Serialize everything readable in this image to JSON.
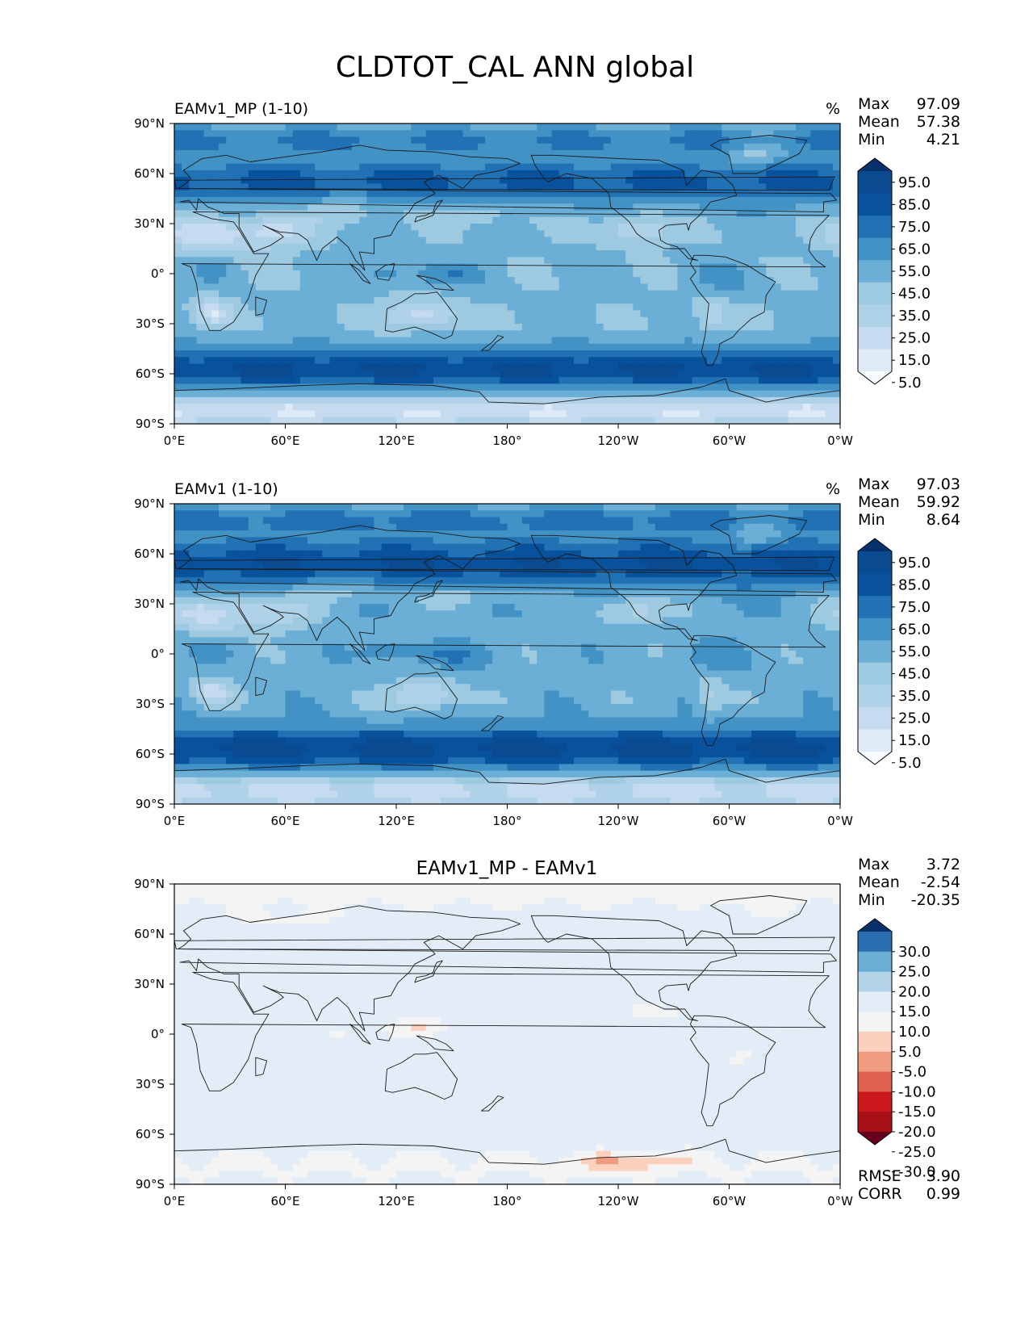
{
  "colors": {
    "blues": [
      "#f7fbff",
      "#deebf7",
      "#c6dbef",
      "#b0d2e8",
      "#9ecae1",
      "#6baed6",
      "#4292c6",
      "#2171b5",
      "#08519c",
      "#0a4a90",
      "#08306b"
    ],
    "diverging": [
      "#67001f",
      "#a50f15",
      "#cb181d",
      "#e0604e",
      "#f09a7f",
      "#fbd0bd",
      "#f4f4f4",
      "#e2edf7",
      "#b3d3e9",
      "#6aaed6",
      "#2a6db1",
      "#08306b"
    ],
    "land": "#1a1a1a"
  },
  "chart_data": {
    "title": "CLDTOT_CAL ANN global",
    "x_ticks": [
      "0°E",
      "60°E",
      "120°E",
      "180°",
      "120°W",
      "60°W",
      "0°W"
    ],
    "y_ticks": [
      "90°N",
      "60°N",
      "30°N",
      "0°",
      "30°S",
      "60°S",
      "90°S"
    ],
    "panels": [
      {
        "id": "test",
        "type": "heatmap",
        "title_left": "EAMv1_MP (1-10)",
        "title_center": "",
        "units": "%",
        "stats": [
          {
            "label": "Max",
            "value": "97.09"
          },
          {
            "label": "Mean",
            "value": "57.38"
          },
          {
            "label": "Min",
            "value": "4.21"
          }
        ],
        "colorbar_levels": [
          0,
          10,
          20,
          30,
          40,
          50,
          60,
          70,
          80,
          90,
          100
        ],
        "colorbar_labels": [
          "95.0",
          "85.0",
          "75.0",
          "65.0",
          "55.0",
          "45.0",
          "35.0",
          "25.0",
          "15.0",
          "5.0"
        ],
        "extra_stats": []
      },
      {
        "id": "ref",
        "type": "heatmap",
        "title_left": "EAMv1 (1-10)",
        "title_center": "",
        "units": "%",
        "stats": [
          {
            "label": "Max",
            "value": "97.03"
          },
          {
            "label": "Mean",
            "value": "59.92"
          },
          {
            "label": "Min",
            "value": "8.64"
          }
        ],
        "colorbar_levels": [
          0,
          10,
          20,
          30,
          40,
          50,
          60,
          70,
          80,
          90,
          100
        ],
        "colorbar_labels": [
          "95.0",
          "85.0",
          "75.0",
          "65.0",
          "55.0",
          "45.0",
          "35.0",
          "25.0",
          "15.0",
          "5.0"
        ],
        "extra_stats": []
      },
      {
        "id": "diff",
        "type": "heatmap",
        "title_left": "",
        "title_center": "EAMv1_MP - EAMv1",
        "units": "",
        "stats": [
          {
            "label": "Max",
            "value": "3.72"
          },
          {
            "label": "Mean",
            "value": "-2.54"
          },
          {
            "label": "Min",
            "value": "-20.35"
          }
        ],
        "colorbar_levels": [
          -35,
          -30,
          -25,
          -20,
          -15,
          -10,
          -5,
          5,
          10,
          15,
          20,
          25,
          30
        ],
        "colorbar_labels": [
          "30.0",
          "25.0",
          "20.0",
          "15.0",
          "10.0",
          "5.0",
          "-5.0",
          "-10.0",
          "-15.0",
          "-20.0",
          "-25.0",
          "-30.0"
        ],
        "extra_stats": [
          {
            "label": "RMSE",
            "value": "3.90"
          },
          {
            "label": "CORR",
            "value": "0.99"
          }
        ]
      }
    ]
  }
}
